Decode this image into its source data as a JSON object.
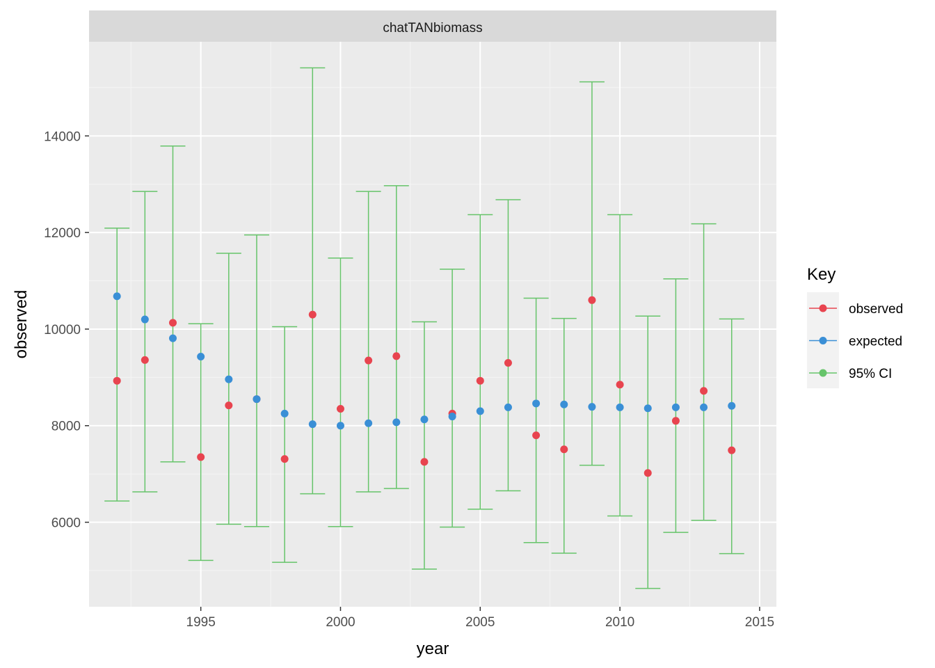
{
  "chart_data": {
    "type": "scatter",
    "panel_title": "chatTANbiomass",
    "xlabel": "year",
    "ylabel": "observed",
    "xlim": [
      1991.0,
      2015.6
    ],
    "ylim": [
      4250,
      15950
    ],
    "x_ticks": [
      1995,
      2000,
      2005,
      2010,
      2015
    ],
    "y_ticks": [
      6000,
      8000,
      10000,
      12000,
      14000
    ],
    "grid": true,
    "legend_position": "right",
    "legend_title": "Key",
    "x": [
      1992,
      1993,
      1994,
      1995,
      1996,
      1997,
      1998,
      1999,
      2000,
      2001,
      2002,
      2003,
      2004,
      2005,
      2006,
      2007,
      2008,
      2009,
      2010,
      2011,
      2012,
      2013,
      2014
    ],
    "series": [
      {
        "name": "observed",
        "color": "#e8444f",
        "values": [
          8930,
          9360,
          10130,
          7350,
          8420,
          8550,
          7310,
          10300,
          8350,
          9350,
          9440,
          7250,
          8250,
          8930,
          9300,
          7800,
          7510,
          10600,
          8850,
          7020,
          8100,
          8720,
          7490
        ]
      },
      {
        "name": "expected",
        "color": "#3a8fd6",
        "values": [
          10680,
          10200,
          9810,
          9430,
          8960,
          8550,
          8250,
          8030,
          8000,
          8050,
          8070,
          8130,
          8190,
          8300,
          8380,
          8460,
          8440,
          8390,
          8380,
          8360,
          8380,
          8380,
          8410
        ]
      },
      {
        "name": "95% CI",
        "color": "#66c46a",
        "lower": [
          6440,
          6630,
          7250,
          5210,
          5960,
          5910,
          5170,
          6590,
          5910,
          6630,
          6700,
          5030,
          5900,
          6270,
          6650,
          5580,
          5360,
          7180,
          6130,
          4630,
          5790,
          6040,
          5350
        ],
        "upper": [
          12090,
          12850,
          13790,
          10110,
          11570,
          11950,
          10050,
          15410,
          11470,
          12850,
          12970,
          10150,
          11240,
          12370,
          12680,
          10640,
          10220,
          15120,
          12370,
          10270,
          11040,
          12180,
          10210
        ]
      }
    ]
  }
}
